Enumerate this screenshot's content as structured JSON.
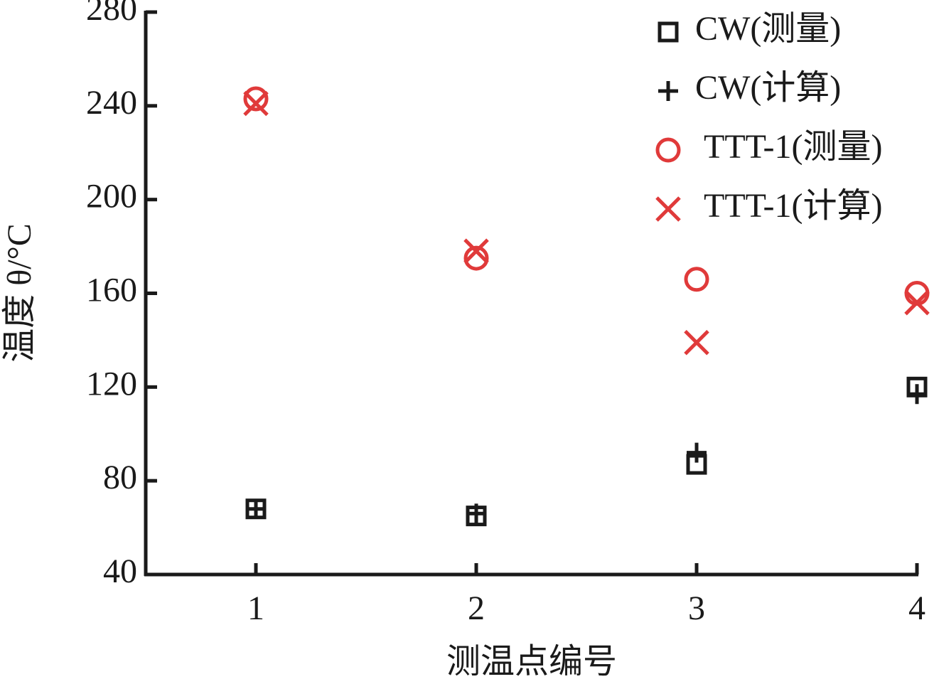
{
  "chart_data": {
    "type": "scatter",
    "xlabel": "测温点编号",
    "ylabel": "温度 θ/°C",
    "x": [
      1,
      2,
      3,
      4
    ],
    "xlim": [
      0.5,
      4
    ],
    "xticks": [
      1,
      2,
      3,
      4
    ],
    "ylim": [
      40,
      280
    ],
    "yticks": [
      40,
      80,
      120,
      160,
      200,
      240,
      280
    ],
    "legend": "upper right",
    "series": [
      {
        "name": "CW(测量)",
        "color": "#1a1a1a",
        "marker": "square",
        "values": [
          68,
          65,
          87,
          120
        ]
      },
      {
        "name": "CW(计算)",
        "color": "#1a1a1a",
        "marker": "plus",
        "values": [
          68,
          66,
          92,
          117
        ]
      },
      {
        "name": "TTT-1(测量)",
        "color": "#e03a3a",
        "marker": "circle",
        "values": [
          243,
          175,
          166,
          160
        ]
      },
      {
        "name": "TTT-1(计算)",
        "color": "#e03a3a",
        "marker": "cross",
        "values": [
          241,
          178,
          139,
          156
        ]
      }
    ]
  }
}
